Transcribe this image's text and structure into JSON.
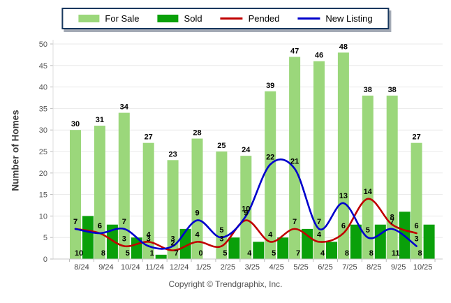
{
  "chart_data": {
    "type": "bar+line",
    "title": "",
    "ylabel": "Number of Homes",
    "ylim": [
      0,
      50
    ],
    "ytick_step": 5,
    "grid": true,
    "legend_position": "top",
    "categories": [
      "8/24",
      "9/24",
      "10/24",
      "11/24",
      "12/24",
      "1/25",
      "2/25",
      "3/25",
      "4/25",
      "5/25",
      "6/25",
      "7/25",
      "8/25",
      "9/25",
      "10/25"
    ],
    "series": [
      {
        "name": "For Sale",
        "style": "bar",
        "color": "#9bd77b",
        "values": [
          30,
          31,
          34,
          27,
          23,
          28,
          25,
          24,
          39,
          47,
          46,
          48,
          38,
          38,
          27
        ]
      },
      {
        "name": "Sold",
        "style": "bar",
        "color": "#0aa00a",
        "values": [
          10,
          8,
          5,
          1,
          7,
          0,
          5,
          4,
          5,
          7,
          4,
          8,
          8,
          11,
          8
        ]
      },
      {
        "name": "Pended",
        "style": "line",
        "color": "#c00000",
        "values": [
          7,
          6,
          3,
          4,
          2,
          4,
          3,
          9,
          4,
          7,
          4,
          6,
          14,
          8,
          6
        ]
      },
      {
        "name": "New Listing",
        "style": "line",
        "color": "#0000cc",
        "values": [
          7,
          6,
          7,
          3,
          3,
          9,
          5,
          10,
          22,
          21,
          7,
          13,
          5,
          7,
          3
        ]
      }
    ]
  },
  "footer": {
    "copyright": "Copyright © Trendgraphix, Inc."
  }
}
